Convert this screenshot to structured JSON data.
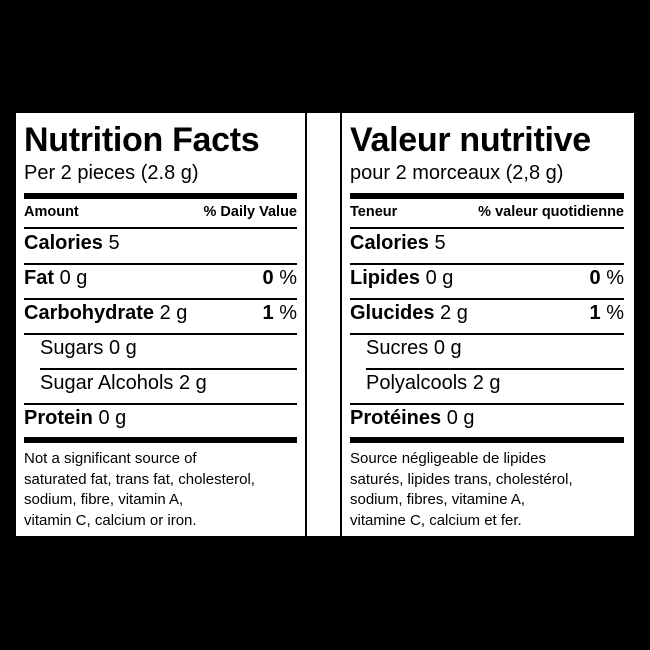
{
  "panels": [
    {
      "lang": "en",
      "title": "Nutrition Facts",
      "serving": "Per 2 pieces (2.8 g)",
      "header_left": "Amount",
      "header_right": "% Daily Value",
      "rows": [
        {
          "label": "Calories",
          "value": "5",
          "bold": true,
          "indent": false,
          "pct_num": "",
          "pct_sign": ""
        },
        {
          "label": "Fat",
          "value": "0 g",
          "bold": true,
          "indent": false,
          "pct_num": "0",
          "pct_sign": "%"
        },
        {
          "label": "Carbohydrate",
          "value": "2 g",
          "bold": true,
          "indent": false,
          "pct_num": "1",
          "pct_sign": "%"
        },
        {
          "label": "Sugars",
          "value": "0 g",
          "bold": false,
          "indent": true,
          "pct_num": "",
          "pct_sign": ""
        },
        {
          "label": "Sugar Alcohols",
          "value": "2 g",
          "bold": false,
          "indent": true,
          "pct_num": "",
          "pct_sign": ""
        },
        {
          "label": "Protein",
          "value": "0 g",
          "bold": true,
          "indent": false,
          "pct_num": "",
          "pct_sign": ""
        }
      ],
      "footnote": [
        "Not a significant source of",
        "saturated fat, trans fat, cholesterol,",
        "sodium, fibre, vitamin A,",
        "vitamin C, calcium or iron."
      ]
    },
    {
      "lang": "fr",
      "title": "Valeur nutritive",
      "serving": "pour 2 morceaux (2,8 g)",
      "header_left": "Teneur",
      "header_right": "% valeur quotidienne",
      "rows": [
        {
          "label": "Calories",
          "value": "5",
          "bold": true,
          "indent": false,
          "pct_num": "",
          "pct_sign": ""
        },
        {
          "label": "Lipides",
          "value": "0 g",
          "bold": true,
          "indent": false,
          "pct_num": "0",
          "pct_sign": "%"
        },
        {
          "label": "Glucides",
          "value": "2 g",
          "bold": true,
          "indent": false,
          "pct_num": "1",
          "pct_sign": "%"
        },
        {
          "label": "Sucres",
          "value": "0 g",
          "bold": false,
          "indent": true,
          "pct_num": "",
          "pct_sign": ""
        },
        {
          "label": "Polyalcools",
          "value": "2 g",
          "bold": false,
          "indent": true,
          "pct_num": "",
          "pct_sign": ""
        },
        {
          "label": "Protéines",
          "value": "0 g",
          "bold": true,
          "indent": false,
          "pct_num": "",
          "pct_sign": ""
        }
      ],
      "footnote": [
        "Source négligeable de lipides",
        "saturés, lipides trans, cholestérol,",
        "sodium, fibres, vitamine A,",
        "vitamine C, calcium et fer."
      ]
    }
  ]
}
